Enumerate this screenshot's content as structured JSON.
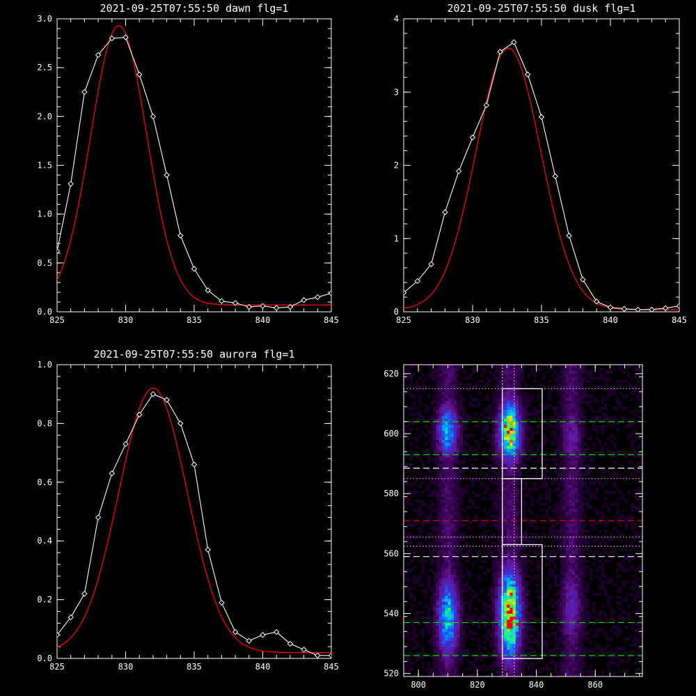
{
  "chart_data": [
    {
      "type": "line",
      "title": "2021-09-25T07:55:50 dawn flg=1",
      "xlim": [
        825,
        845
      ],
      "ylim": [
        0,
        3.0
      ],
      "xticks": [
        825,
        830,
        835,
        840,
        845
      ],
      "xtick_labels": [
        "825",
        "830",
        "835",
        "840",
        "845"
      ],
      "yticks": [
        0,
        0.5,
        1.0,
        1.5,
        2.0,
        2.5,
        3.0
      ],
      "ytick_labels": [
        "0.0",
        "0.5",
        "1.0",
        "1.5",
        "2.0",
        "2.5",
        "3.0"
      ],
      "grid": false,
      "series": [
        {
          "kind": "measured",
          "color": "#ffffff",
          "marker": "diamond",
          "x": [
            825,
            826,
            827,
            828,
            829,
            830,
            831,
            832,
            833,
            834,
            835,
            836,
            837,
            838,
            839,
            840,
            841,
            842,
            843,
            844,
            845
          ],
          "y": [
            0.62,
            1.31,
            2.25,
            2.63,
            2.8,
            2.81,
            2.43,
            2.0,
            1.4,
            0.78,
            0.44,
            0.22,
            0.11,
            0.09,
            0.05,
            0.06,
            0.04,
            0.05,
            0.12,
            0.15,
            0.19
          ]
        },
        {
          "kind": "fit",
          "color": "#ff0000",
          "gauss": {
            "amp": 2.86,
            "center": 829.5,
            "sigma": 2.05,
            "offset": 0.07
          }
        }
      ]
    },
    {
      "type": "line",
      "title": "2021-09-25T07:55:50 dusk flg=1",
      "xlim": [
        825,
        845
      ],
      "ylim": [
        0,
        4
      ],
      "xticks": [
        825,
        830,
        835,
        840,
        845
      ],
      "xtick_labels": [
        "825",
        "830",
        "835",
        "840",
        "845"
      ],
      "yticks": [
        0,
        1,
        2,
        3,
        4
      ],
      "ytick_labels": [
        "0",
        "1",
        "2",
        "3",
        "4"
      ],
      "grid": false,
      "series": [
        {
          "kind": "measured",
          "color": "#ffffff",
          "marker": "diamond",
          "x": [
            825,
            826,
            827,
            828,
            829,
            830,
            831,
            832,
            833,
            834,
            835,
            836,
            837,
            838,
            839,
            840,
            841,
            842,
            843,
            844,
            845
          ],
          "y": [
            0.26,
            0.42,
            0.65,
            1.36,
            1.92,
            2.38,
            2.82,
            3.55,
            3.68,
            3.24,
            2.66,
            1.85,
            1.04,
            0.44,
            0.14,
            0.06,
            0.04,
            0.03,
            0.03,
            0.05,
            0.08
          ]
        },
        {
          "kind": "fit",
          "color": "#ff0000",
          "gauss": {
            "amp": 3.57,
            "center": 832.6,
            "sigma": 2.35,
            "offset": 0.03
          }
        }
      ]
    },
    {
      "type": "line",
      "title": "2021-09-25T07:55:50 aurora flg=1",
      "xlim": [
        825,
        845
      ],
      "ylim": [
        0,
        1.0
      ],
      "xticks": [
        825,
        830,
        835,
        840,
        845
      ],
      "xtick_labels": [
        "825",
        "830",
        "835",
        "840",
        "845"
      ],
      "yticks": [
        0,
        0.2,
        0.4,
        0.6,
        0.8,
        1.0
      ],
      "ytick_labels": [
        "0.0",
        "0.2",
        "0.4",
        "0.6",
        "0.8",
        "1.0"
      ],
      "grid": false,
      "series": [
        {
          "kind": "measured",
          "color": "#ffffff",
          "marker": "diamond",
          "x": [
            825,
            826,
            827,
            828,
            829,
            830,
            831,
            832,
            833,
            834,
            835,
            836,
            837,
            838,
            839,
            840,
            841,
            842,
            843,
            844,
            845
          ],
          "y": [
            0.08,
            0.14,
            0.22,
            0.48,
            0.63,
            0.73,
            0.83,
            0.9,
            0.88,
            0.8,
            0.66,
            0.37,
            0.19,
            0.09,
            0.06,
            0.08,
            0.09,
            0.05,
            0.03,
            0.01,
            0.01
          ]
        },
        {
          "kind": "fit",
          "color": "#ff0000",
          "gauss": {
            "amp": 0.9,
            "center": 832.0,
            "sigma": 2.5,
            "offset": 0.02
          }
        }
      ]
    },
    {
      "type": "heatmap",
      "title": "",
      "xlim": [
        795,
        876
      ],
      "ylim": [
        519,
        623
      ],
      "xticks": [
        800,
        820,
        840,
        860
      ],
      "xtick_labels": [
        "800",
        "820",
        "840",
        "860"
      ],
      "yticks": [
        520,
        540,
        560,
        580,
        600,
        620
      ],
      "ytick_labels": [
        "520",
        "540",
        "560",
        "580",
        "600",
        "620"
      ],
      "grid": false,
      "emission_columns": [
        {
          "x_center": 810,
          "x_sigma": 2.3,
          "blobs": [
            {
              "y": 601,
              "sigma": 6,
              "amp": 0.55
            },
            {
              "y": 539,
              "sigma": 9,
              "amp": 0.6
            }
          ]
        },
        {
          "x_center": 831,
          "x_sigma": 2.4,
          "blobs": [
            {
              "y": 601,
              "sigma": 7,
              "amp": 0.85
            },
            {
              "y": 540,
              "sigma": 10,
              "amp": 0.95
            }
          ]
        },
        {
          "x_center": 852,
          "x_sigma": 2.3,
          "blobs": [
            {
              "y": 599,
              "sigma": 7,
              "amp": 0.22
            },
            {
              "y": 542,
              "sigma": 10,
              "amp": 0.25
            }
          ]
        }
      ],
      "hotspots": [
        {
          "x": 829,
          "y": 602.5,
          "value": 1.0
        },
        {
          "x": 833,
          "y": 536.5,
          "value": 1.0
        }
      ],
      "boxes": [
        {
          "x0": 828.5,
          "x1": 842,
          "y0": 585,
          "y1": 615,
          "color": "#ffffff"
        },
        {
          "x0": 828.5,
          "x1": 835,
          "y0": 563,
          "y1": 585,
          "color": "#ffffff"
        },
        {
          "x0": 828.5,
          "x1": 842,
          "y0": 525,
          "y1": 563,
          "color": "#ffffff"
        }
      ],
      "vertical_dotted_lines": [
        {
          "x": 828.5,
          "color": "#ffffff"
        },
        {
          "x": 832.5,
          "color": "#ff99ff"
        }
      ],
      "horizontal_lines": [
        {
          "y": 615,
          "color": "#ff99ff",
          "style": "dotted"
        },
        {
          "y": 604,
          "color": "#00dd00",
          "style": "dashed"
        },
        {
          "y": 593,
          "color": "#00dd00",
          "style": "dashed"
        },
        {
          "y": 588.5,
          "color": "#ffffff",
          "style": "dashed"
        },
        {
          "y": 585,
          "color": "#ff99ff",
          "style": "dotted"
        },
        {
          "y": 571,
          "color": "#dd0000",
          "style": "dashed"
        },
        {
          "y": 565.5,
          "color": "#ff99ff",
          "style": "dotted"
        },
        {
          "y": 562.5,
          "color": "#ff99ff",
          "style": "dotted"
        },
        {
          "y": 559,
          "color": "#ffffff",
          "style": "dashed"
        },
        {
          "y": 537,
          "color": "#00dd00",
          "style": "dashed"
        },
        {
          "y": 526,
          "color": "#00dd00",
          "style": "dashed"
        }
      ]
    }
  ]
}
